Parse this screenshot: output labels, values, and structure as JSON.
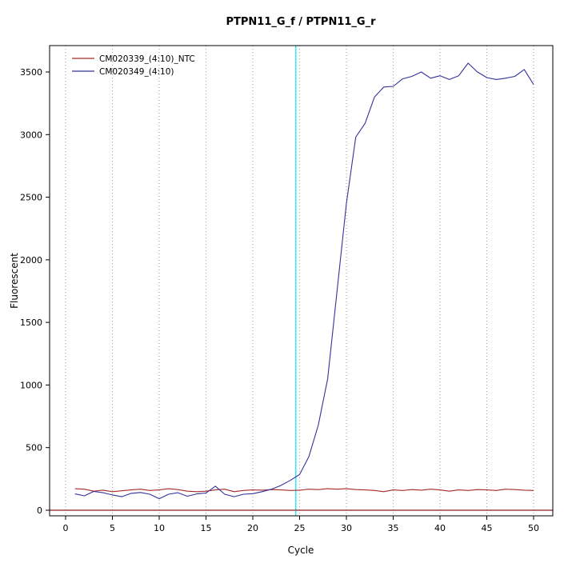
{
  "chart_data": {
    "type": "line",
    "title": "PTPN11_G_f / PTPN11_G_r",
    "xlabel": "Cycle",
    "ylabel": "Fluorescent",
    "xlim": [
      0,
      50
    ],
    "ylim": [
      0,
      3500
    ],
    "x_ticks": [
      0,
      5,
      10,
      15,
      20,
      25,
      30,
      35,
      40,
      45,
      50
    ],
    "y_ticks": [
      0,
      500,
      1000,
      1500,
      2000,
      2500,
      3000,
      3500
    ],
    "grid": "vertical dotted gridlines at x ticks",
    "legend_position": "top-left",
    "marker_line": {
      "x": 24.6,
      "color": "#00e5ee"
    },
    "threshold_line": {
      "y": 0,
      "color": "#8b2323"
    },
    "x": [
      1,
      2,
      3,
      4,
      5,
      6,
      7,
      8,
      9,
      10,
      11,
      12,
      13,
      14,
      15,
      16,
      17,
      18,
      19,
      20,
      21,
      22,
      23,
      24,
      25,
      26,
      27,
      28,
      29,
      30,
      31,
      32,
      33,
      34,
      35,
      36,
      37,
      38,
      39,
      40,
      41,
      42,
      43,
      44,
      45,
      46,
      47,
      48,
      49,
      50
    ],
    "series": [
      {
        "name": "CM020339_(4:10)_NTC",
        "color": "#a52a2a",
        "values": [
          172,
          168,
          152,
          160,
          148,
          155,
          162,
          168,
          158,
          162,
          172,
          165,
          152,
          148,
          152,
          162,
          168,
          148,
          158,
          162,
          160,
          165,
          162,
          158,
          160,
          168,
          165,
          172,
          168,
          172,
          165,
          162,
          158,
          148,
          162,
          158,
          165,
          160,
          168,
          162,
          152,
          162,
          158,
          165,
          162,
          158,
          168,
          165,
          160,
          158
        ]
      },
      {
        "name": "CM020349_(4:10)",
        "color": "#33339b",
        "values": [
          130,
          115,
          150,
          140,
          122,
          108,
          135,
          142,
          128,
          92,
          128,
          140,
          112,
          130,
          138,
          192,
          128,
          108,
          128,
          132,
          148,
          168,
          198,
          238,
          285,
          430,
          680,
          1050,
          1750,
          2450,
          2980,
          3090,
          3300,
          3380,
          3385,
          3445,
          3465,
          3500,
          3450,
          3470,
          3440,
          3470,
          3570,
          3500,
          3455,
          3440,
          3450,
          3465,
          3520,
          3400
        ]
      }
    ]
  }
}
